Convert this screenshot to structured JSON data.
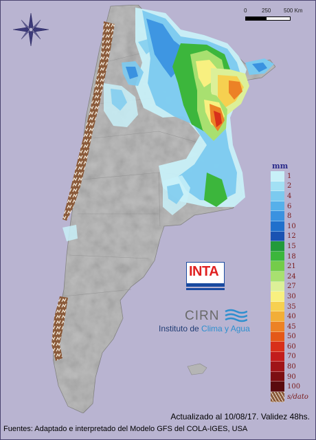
{
  "scale": {
    "labels": [
      "0",
      "250",
      "500 Km"
    ]
  },
  "legend": {
    "unit": "mm",
    "items": [
      {
        "label": "1",
        "color": "#c8f0f8"
      },
      {
        "label": "2",
        "color": "#a2e0f4"
      },
      {
        "label": "4",
        "color": "#7ccaef"
      },
      {
        "label": "6",
        "color": "#56b0ea"
      },
      {
        "label": "8",
        "color": "#3a92e0"
      },
      {
        "label": "10",
        "color": "#2070cc"
      },
      {
        "label": "12",
        "color": "#1a52b2"
      },
      {
        "label": "15",
        "color": "#229a3a"
      },
      {
        "label": "18",
        "color": "#3cb63c"
      },
      {
        "label": "21",
        "color": "#74cc4a"
      },
      {
        "label": "24",
        "color": "#a8e070"
      },
      {
        "label": "27",
        "color": "#dcf098"
      },
      {
        "label": "30",
        "color": "#f8f080"
      },
      {
        "label": "35",
        "color": "#f6d050"
      },
      {
        "label": "40",
        "color": "#f2ae38"
      },
      {
        "label": "45",
        "color": "#ec8226"
      },
      {
        "label": "50",
        "color": "#e45818"
      },
      {
        "label": "60",
        "color": "#d8301a"
      },
      {
        "label": "70",
        "color": "#c21c1c"
      },
      {
        "label": "80",
        "color": "#a01418"
      },
      {
        "label": "90",
        "color": "#7c0e12"
      },
      {
        "label": "100",
        "color": "#5a0a0e"
      },
      {
        "label": "s/dato",
        "color": "#8a5a3a"
      }
    ]
  },
  "logo": {
    "inta": "INTA",
    "cirn": "CIRN",
    "instituto_prefix": "Instituto de ",
    "instituto_highlight": "Clima y Agua"
  },
  "footer": {
    "updated": "Actualizado al 10/08/17. Validez 48hs.",
    "sources": "Fuentes: Adaptado e interpretado del Modelo GFS del COLA-IGES, USA"
  }
}
